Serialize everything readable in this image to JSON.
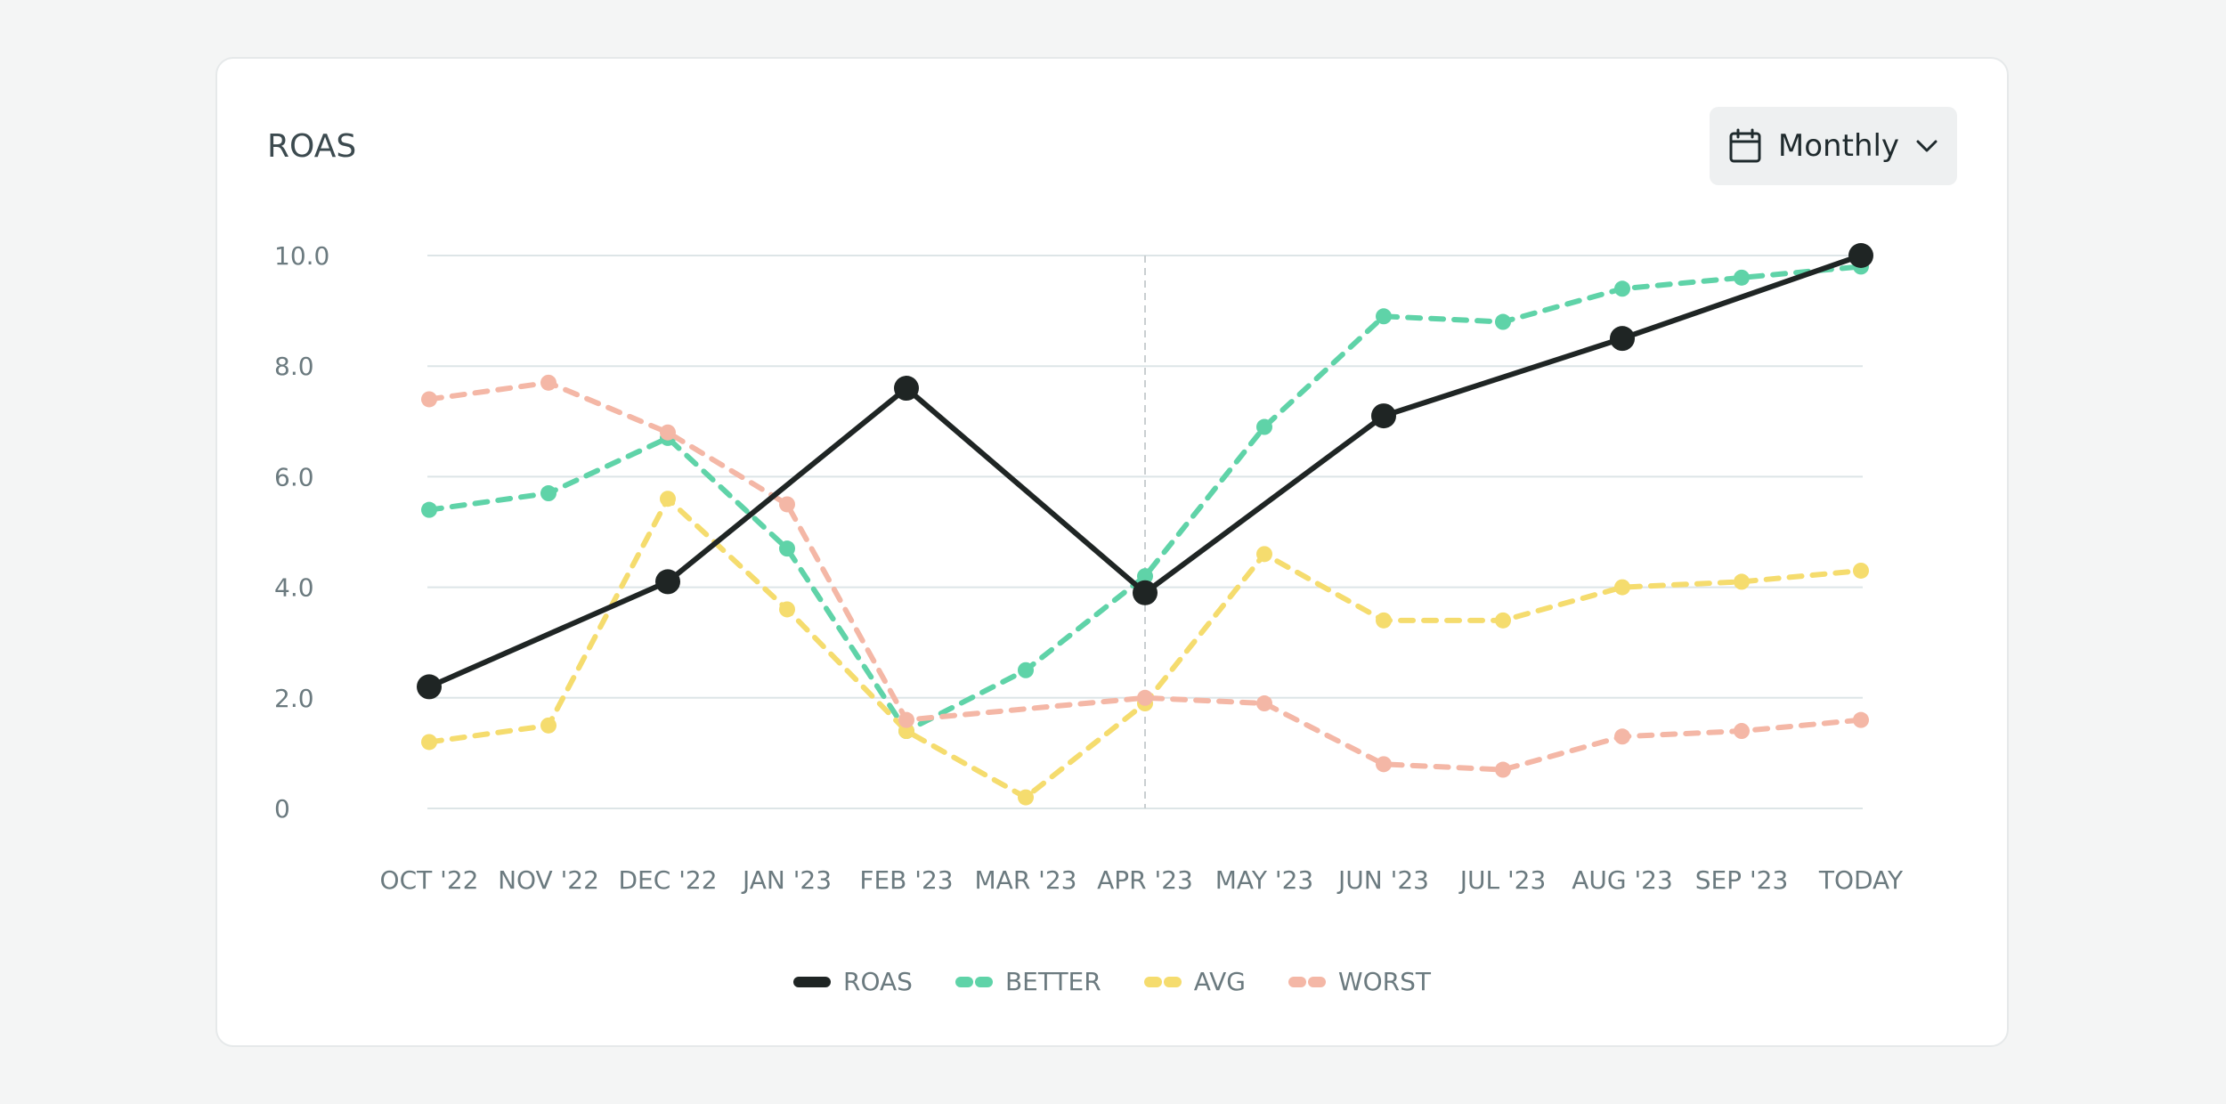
{
  "card": {
    "title": "ROAS",
    "period_select": {
      "label": "Monthly",
      "icon": "calendar-icon",
      "chevron": "chevron-down-icon"
    }
  },
  "chart_data": {
    "type": "line",
    "categories": [
      "OCT '22",
      "NOV '22",
      "DEC '22",
      "JAN '23",
      "FEB '23",
      "MAR '23",
      "APR '23",
      "MAY '23",
      "JUN '23",
      "JUL '23",
      "AUG '23",
      "SEP '23",
      "TODAY"
    ],
    "y_ticks": [
      "0",
      "2.0",
      "4.0",
      "6.0",
      "8.0",
      "10.0"
    ],
    "ylim": [
      0,
      10
    ],
    "grid": true,
    "marker_line_at": "APR '23",
    "legend_position": "bottom",
    "series": [
      {
        "name": "ROAS",
        "color": "#1f2524",
        "style": "solid",
        "values": [
          2.2,
          null,
          4.1,
          null,
          7.6,
          null,
          3.9,
          null,
          7.1,
          null,
          8.5,
          null,
          10.0
        ]
      },
      {
        "name": "BETTER",
        "color": "#5fd3a8",
        "style": "dashed",
        "values": [
          5.4,
          5.7,
          6.7,
          4.7,
          1.4,
          2.5,
          4.2,
          6.9,
          8.9,
          8.8,
          9.4,
          9.6,
          9.8
        ]
      },
      {
        "name": "AVG",
        "color": "#f5dc6e",
        "style": "dashed",
        "values": [
          1.2,
          1.5,
          5.6,
          3.6,
          1.4,
          0.2,
          1.9,
          4.6,
          3.4,
          3.4,
          4.0,
          4.1,
          4.3
        ]
      },
      {
        "name": "WORST",
        "color": "#f4b7a6",
        "style": "dashed",
        "values": [
          7.4,
          7.7,
          6.8,
          5.5,
          1.6,
          null,
          2.0,
          1.9,
          0.8,
          0.7,
          1.3,
          1.4,
          1.6
        ]
      }
    ]
  }
}
